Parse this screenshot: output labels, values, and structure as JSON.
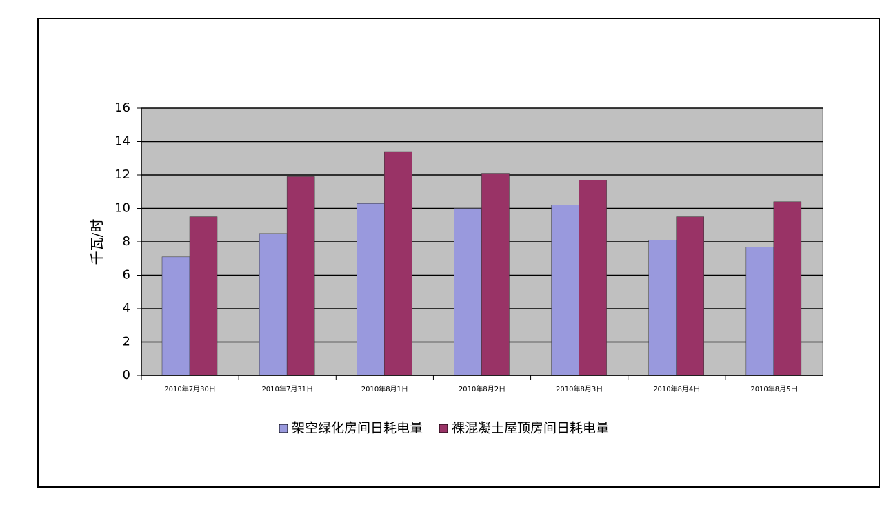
{
  "chart_data": {
    "type": "bar",
    "y_label": "千瓦/时",
    "categories": [
      "2010年7月30日",
      "2010年7月31日",
      "2010年8月1日",
      "2010年8月2日",
      "2010年8月3日",
      "2010年8月4日",
      "2010年8月5日"
    ],
    "series": [
      {
        "name": "架空绿化房间日耗电量",
        "color": "#9999dd",
        "values": [
          7.1,
          8.5,
          10.3,
          10.0,
          10.2,
          8.1,
          7.7
        ]
      },
      {
        "name": "裸混凝土屋顶房间日耗电量",
        "color": "#993366",
        "values": [
          9.5,
          11.9,
          13.4,
          12.1,
          11.7,
          9.5,
          10.4
        ]
      }
    ],
    "ylim": [
      0,
      16
    ],
    "yticks": [
      0,
      2,
      4,
      6,
      8,
      10,
      12,
      14,
      16
    ],
    "grid": true
  }
}
